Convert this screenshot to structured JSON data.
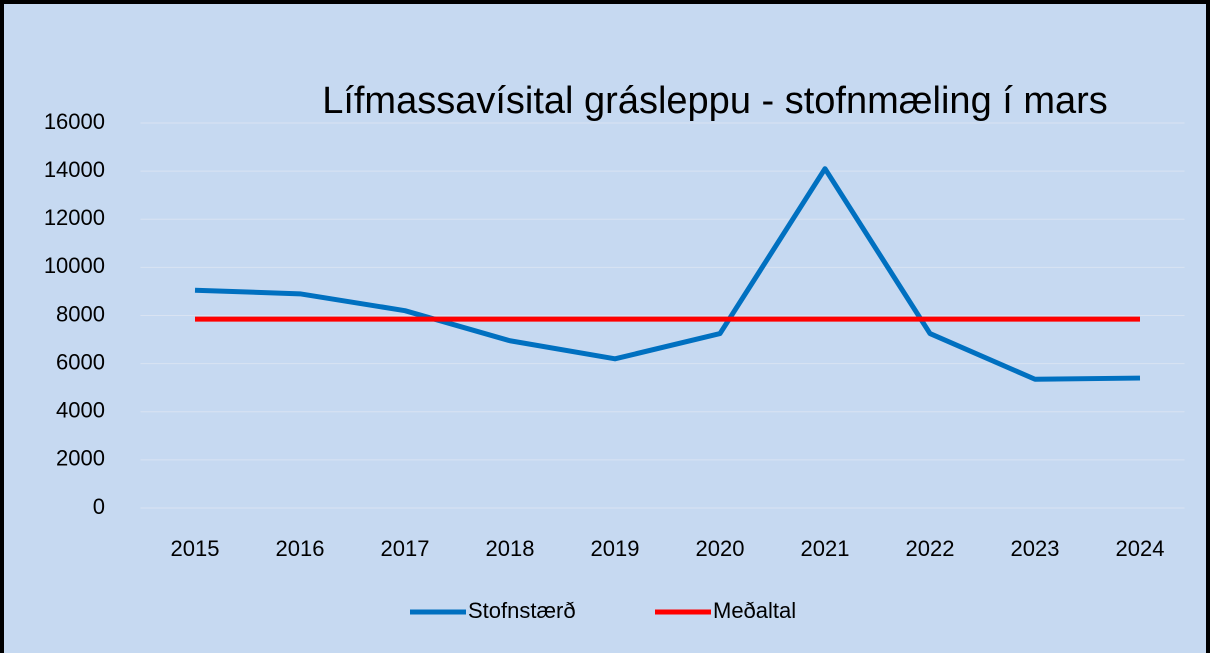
{
  "chart_data": {
    "type": "line",
    "title": "Lífmassavísital grásleppu - stofnmæling í mars",
    "categories": [
      "2015",
      "2016",
      "2017",
      "2018",
      "2019",
      "2020",
      "2021",
      "2022",
      "2023",
      "2024"
    ],
    "series": [
      {
        "name": "Stofnstærð",
        "color": "#0070c0",
        "values": [
          9050,
          8900,
          8200,
          6950,
          6200,
          7250,
          14100,
          7250,
          5350,
          5400
        ]
      },
      {
        "name": "Meðaltal",
        "color": "#ff0000",
        "values": [
          7850,
          7850,
          7850,
          7850,
          7850,
          7850,
          7850,
          7850,
          7850,
          7850
        ]
      }
    ],
    "ylim": [
      0,
      16000
    ],
    "yticks": [
      0,
      2000,
      4000,
      6000,
      8000,
      10000,
      12000,
      14000,
      16000
    ],
    "grid": true,
    "legend": "bottom"
  }
}
